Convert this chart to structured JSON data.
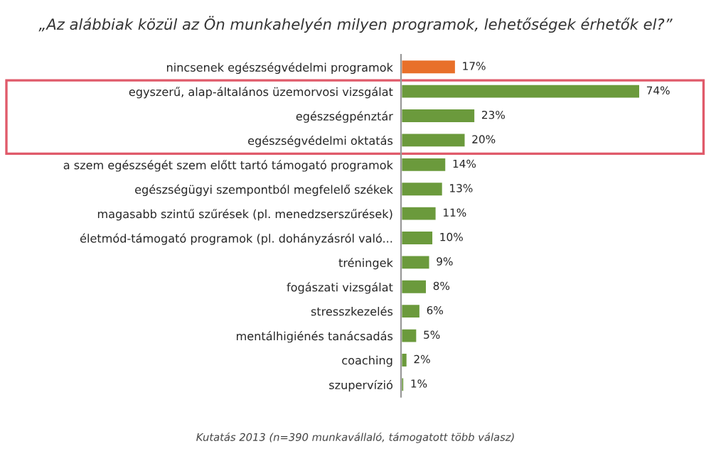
{
  "chart_data": {
    "type": "bar",
    "orientation": "horizontal",
    "title": "„Az alábbiak közül az Ön munkahelyén milyen programok, lehetőségek érhetők el?”",
    "categories": [
      "nincsenek egészségvédelmi programok",
      "egyszerű, alap-általános üzemorvosi vizsgálat",
      "egészségpénztár",
      "egészségvédelmi oktatás",
      "a szem egészségét szem előtt tartó támogató programok",
      "egészségügyi szempontból megfelelő székek",
      "magasabb szintű szűrések (pl. menedzserszűrések)",
      "életmód-támogató programok (pl. dohányzásról való...",
      "tréningek",
      "fogászati vizsgálat",
      "stresszkezelés",
      "mentálhigiénés tanácsadás",
      "coaching",
      "szupervízió"
    ],
    "values": [
      17,
      74,
      23,
      20,
      14,
      13,
      11,
      10,
      9,
      8,
      6,
      5,
      2,
      1
    ],
    "colors": [
      "#e8702a",
      "#6b9a3c",
      "#6b9a3c",
      "#6b9a3c",
      "#6b9a3c",
      "#6b9a3c",
      "#6b9a3c",
      "#6b9a3c",
      "#6b9a3c",
      "#6b9a3c",
      "#6b9a3c",
      "#6b9a3c",
      "#6b9a3c",
      "#6b9a3c"
    ],
    "value_labels": [
      "17%",
      "74%",
      "23%",
      "20%",
      "14%",
      "13%",
      "11%",
      "10%",
      "9%",
      "8%",
      "6%",
      "5%",
      "2%",
      "1%"
    ],
    "annotations": [
      "Kutatás 2013 (n=390 munkavállaló, támogatott több válasz)"
    ],
    "grid": false,
    "legend": false
  }
}
